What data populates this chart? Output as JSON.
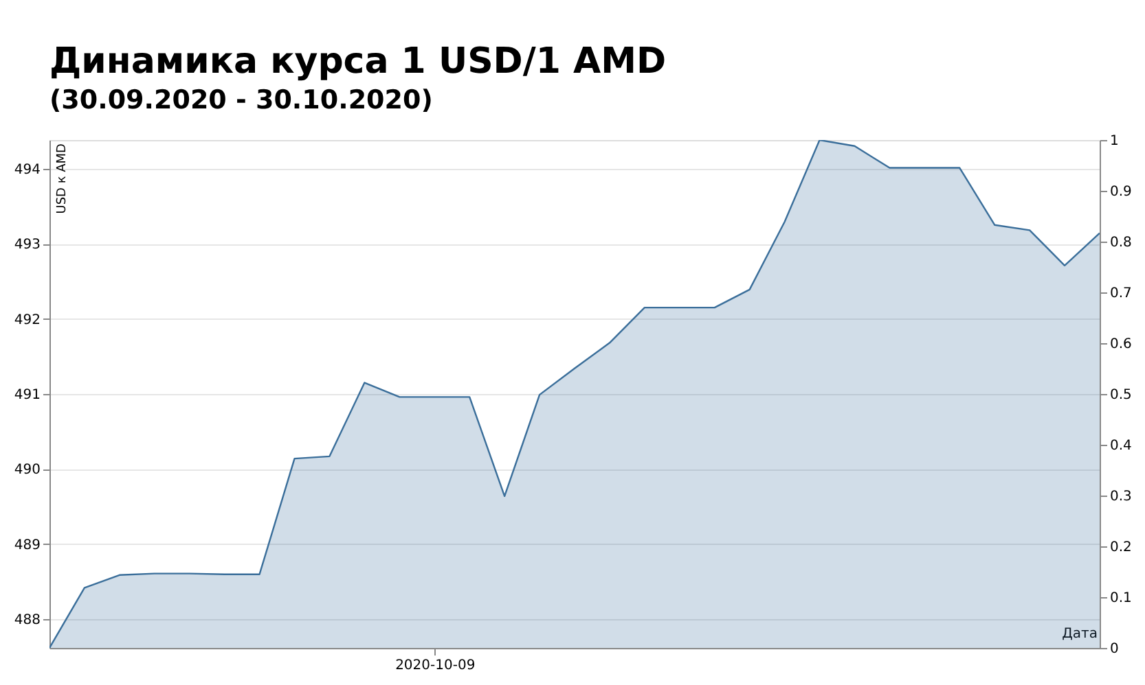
{
  "chart_data": {
    "type": "area",
    "title": "Динамика курса 1 USD/1 AMD",
    "subtitle": "(30.09.2020 - 30.10.2020)",
    "xlabel": "Дата",
    "ylabel": "USD к AMD",
    "categories": [
      null,
      null,
      null,
      null,
      null,
      null,
      null,
      null,
      null,
      null,
      null,
      "2020-10-09",
      null,
      null,
      null,
      null,
      null,
      null,
      null,
      null,
      null,
      null,
      null,
      null,
      null,
      null,
      null,
      null,
      null,
      null,
      null
    ],
    "series": [
      {
        "color": "#3a6e9a",
        "values": [
          487.62,
          488.42,
          488.59,
          488.61,
          488.61,
          488.6,
          488.6,
          490.14,
          490.17,
          491.15,
          490.96,
          490.96,
          490.96,
          489.64,
          490.99,
          491.34,
          491.68,
          492.15,
          492.15,
          492.15,
          492.39,
          493.29,
          494.38,
          494.3,
          494.01,
          494.01,
          494.01,
          493.25,
          493.18,
          492.71,
          493.14
        ]
      }
    ],
    "ylim": [
      487.62,
      494.38
    ],
    "yticks": [
      488,
      489,
      490,
      491,
      492,
      493,
      494
    ],
    "y2lim": [
      0,
      1
    ],
    "y2ticks": [
      0,
      0.1,
      0.2,
      0.3,
      0.4,
      0.5,
      0.6,
      0.7,
      0.8,
      0.9,
      1
    ],
    "grid": "y"
  }
}
